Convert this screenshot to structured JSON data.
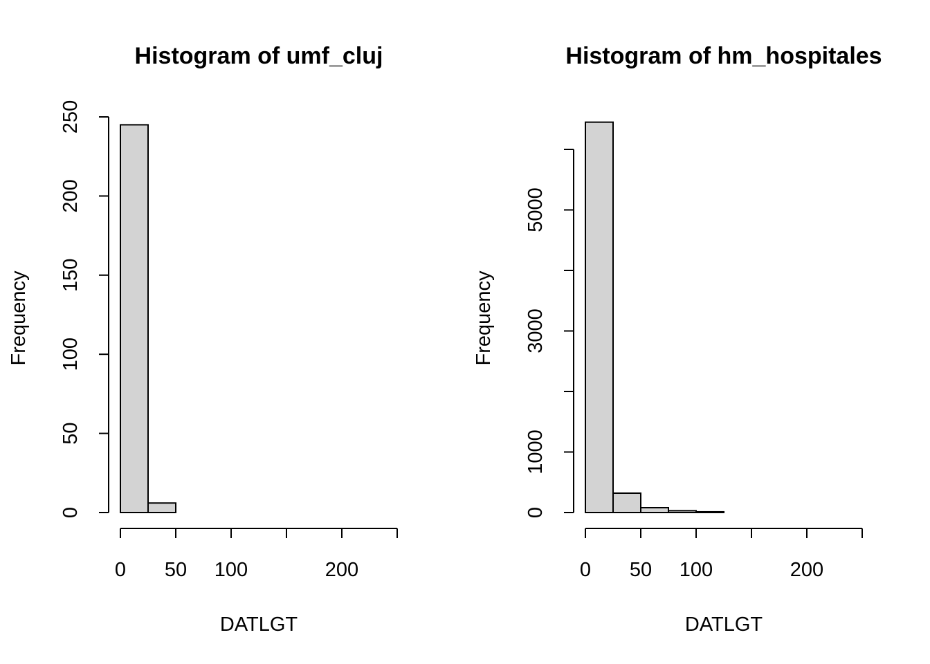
{
  "chart_data": [
    {
      "type": "bar",
      "title": "Histogram of umf_cluj",
      "xlabel": "DATLGT",
      "ylabel": "Frequency",
      "bin_edges": [
        0,
        25,
        50,
        75,
        100,
        125,
        150,
        175,
        200,
        225,
        250
      ],
      "values": [
        245,
        6,
        0,
        0,
        0,
        0,
        0,
        0,
        0,
        0
      ],
      "xlim": [
        0,
        250
      ],
      "ylim": [
        0,
        250
      ],
      "x_ticks": [
        0,
        50,
        100,
        150,
        200,
        250
      ],
      "x_tick_labels": [
        "0",
        "50",
        "100",
        "",
        "200",
        ""
      ],
      "y_ticks": [
        0,
        50,
        100,
        150,
        200,
        250
      ],
      "y_tick_labels": [
        "0",
        "50",
        "100",
        "150",
        "200",
        "250"
      ],
      "colors": {
        "bar_fill": "#d3d3d3",
        "bar_stroke": "#000000"
      }
    },
    {
      "type": "bar",
      "title": "Histogram of hm_hospitales",
      "xlabel": "DATLGT",
      "ylabel": "Frequency",
      "bin_edges": [
        0,
        25,
        50,
        75,
        100,
        125,
        150,
        175,
        200,
        225,
        250
      ],
      "values": [
        6450,
        320,
        80,
        30,
        12,
        0,
        0,
        0,
        0,
        0
      ],
      "xlim": [
        0,
        250
      ],
      "ylim": [
        0,
        6000
      ],
      "x_ticks": [
        0,
        50,
        100,
        150,
        200,
        250
      ],
      "x_tick_labels": [
        "0",
        "50",
        "100",
        "",
        "200",
        ""
      ],
      "y_ticks": [
        0,
        1000,
        2000,
        3000,
        4000,
        5000,
        6000
      ],
      "y_tick_labels": [
        "0",
        "1000",
        "",
        "3000",
        "",
        "5000",
        ""
      ],
      "colors": {
        "bar_fill": "#d3d3d3",
        "bar_stroke": "#000000"
      }
    }
  ]
}
